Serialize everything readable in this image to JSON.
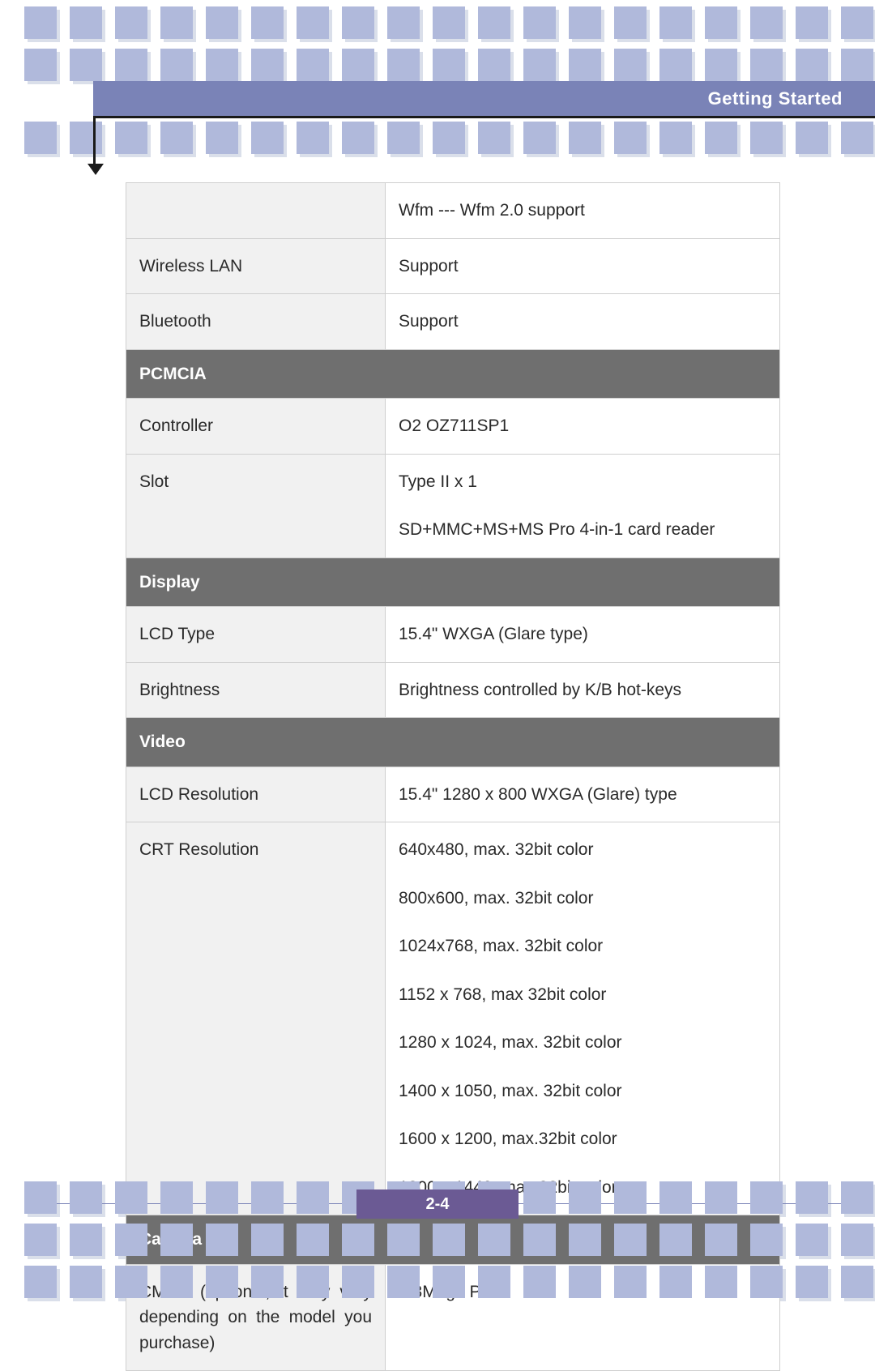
{
  "header": {
    "title": "Getting Started"
  },
  "page_number": "2-4",
  "decor": {
    "square_fill": "#b0b9db",
    "square_shadow": "#dadfea",
    "header_bar": "#7a83b7",
    "section_bg": "#6f6f6f",
    "label_bg": "#f1f1f1",
    "border": "#cfcfcf",
    "pagenum_bg": "#6b5a94"
  },
  "rows": [
    {
      "type": "data",
      "label": "",
      "value": "Wfm --- Wfm 2.0 support"
    },
    {
      "type": "data",
      "label": "Wireless LAN",
      "value": "Support"
    },
    {
      "type": "data",
      "label": "Bluetooth",
      "value": "Support"
    },
    {
      "type": "section",
      "label": "PCMCIA"
    },
    {
      "type": "data",
      "label": "Controller",
      "value": "O2 OZ711SP1"
    },
    {
      "type": "data",
      "label": "Slot",
      "values": [
        "Type II x 1",
        "SD+MMC+MS+MS Pro 4-in-1 card reader"
      ]
    },
    {
      "type": "section",
      "label": "Display"
    },
    {
      "type": "data",
      "label": "LCD Type",
      "value": "15.4\" WXGA (Glare type)"
    },
    {
      "type": "data",
      "label": "Brightness",
      "value": "Brightness controlled by K/B hot-keys"
    },
    {
      "type": "section",
      "label": "Video"
    },
    {
      "type": "data",
      "label": "LCD Resolution",
      "value": "15.4\" 1280 x 800 WXGA (Glare) type"
    },
    {
      "type": "data",
      "label": "CRT Resolution",
      "values": [
        "640x480, max. 32bit color",
        "800x600, max. 32bit color",
        "1024x768, max. 32bit color",
        "1152 x 768, max 32bit color",
        "1280 x 1024, max. 32bit color",
        "1400 x 1050, max. 32bit color",
        "1600 x 1200, max.32bit color",
        "1800 x 1440, max.32bit color"
      ]
    },
    {
      "type": "section",
      "label": "Camera"
    },
    {
      "type": "data",
      "label": "CMOS (optional, it may vary depending on the model you purchase)",
      "label_justify": true,
      "value": "1.3Mega Pixel"
    }
  ]
}
